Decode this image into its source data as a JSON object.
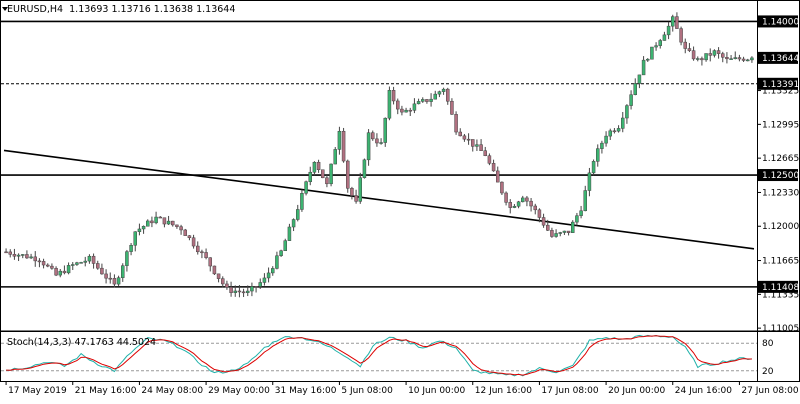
{
  "header": {
    "symbol": "EURUSD,H4",
    "open": "1.13693",
    "high": "1.13716",
    "low": "1.13638",
    "close": "1.13644"
  },
  "indicator": {
    "label": "Stoch(14,3,3)",
    "main_value": "47.1763",
    "signal_value": "44.5024",
    "levels": [
      "80",
      "20"
    ]
  },
  "colors": {
    "background": "#ffffff",
    "bull_candle": "#3cb371",
    "bear_candle": "#b07080",
    "wick": "#444444",
    "level_line": "#000000",
    "stoch_main": "#20b2aa",
    "stoch_signal": "#dd0000",
    "stoch_level": "#999999"
  },
  "chart_data": {
    "type": "candlestick",
    "symbol": "EURUSD",
    "timeframe": "H4",
    "ylim": [
      1.10977,
      1.1418
    ],
    "y_ticks": [
      "1.14000",
      "1.13644",
      "1.13391",
      "1.13325",
      "1.12995",
      "1.12665",
      "1.12500",
      "1.12330",
      "1.12000",
      "1.11665",
      "1.11408",
      "1.11335",
      "1.11005"
    ],
    "highlighted_ticks": [
      "1.14000",
      "1.13644",
      "1.13391",
      "1.12500",
      "1.11408"
    ],
    "x_ticks": [
      "17 May 2019",
      "21 May 16:00",
      "24 May 08:00",
      "29 May 00:00",
      "31 May 16:00",
      "5 Jun 08:00",
      "10 Jun 00:00",
      "12 Jun 16:00",
      "17 Jun 08:00",
      "20 Jun 00:00",
      "24 Jun 16:00",
      "27 Jun 08:00"
    ],
    "x_tick_indices": [
      0,
      16,
      32,
      48,
      64,
      80,
      96,
      112,
      128,
      144,
      160,
      176
    ],
    "num_bars": 180,
    "anchors": [
      [
        0,
        1.1175
      ],
      [
        8,
        1.1168
      ],
      [
        12,
        1.1152
      ],
      [
        16,
        1.1162
      ],
      [
        20,
        1.1168
      ],
      [
        26,
        1.1142
      ],
      [
        31,
        1.1195
      ],
      [
        36,
        1.1208
      ],
      [
        42,
        1.1198
      ],
      [
        48,
        1.1168
      ],
      [
        53,
        1.1138
      ],
      [
        58,
        1.1135
      ],
      [
        62,
        1.1148
      ],
      [
        66,
        1.1175
      ],
      [
        70,
        1.1218
      ],
      [
        74,
        1.1265
      ],
      [
        77,
        1.124
      ],
      [
        80,
        1.1295
      ],
      [
        82,
        1.1238
      ],
      [
        84,
        1.1222
      ],
      [
        87,
        1.129
      ],
      [
        90,
        1.128
      ],
      [
        92,
        1.133
      ],
      [
        95,
        1.131
      ],
      [
        98,
        1.1318
      ],
      [
        102,
        1.1325
      ],
      [
        105,
        1.1335
      ],
      [
        108,
        1.1295
      ],
      [
        112,
        1.128
      ],
      [
        115,
        1.127
      ],
      [
        118,
        1.1242
      ],
      [
        121,
        1.1218
      ],
      [
        124,
        1.123
      ],
      [
        127,
        1.1215
      ],
      [
        131,
        1.119
      ],
      [
        135,
        1.1195
      ],
      [
        138,
        1.1218
      ],
      [
        141,
        1.1265
      ],
      [
        144,
        1.129
      ],
      [
        147,
        1.1298
      ],
      [
        150,
        1.133
      ],
      [
        153,
        1.136
      ],
      [
        156,
        1.1378
      ],
      [
        159,
        1.1395
      ],
      [
        160,
        1.1402
      ],
      [
        163,
        1.1372
      ],
      [
        166,
        1.1362
      ],
      [
        170,
        1.137
      ],
      [
        173,
        1.1362
      ],
      [
        177,
        1.1364
      ]
    ],
    "horizontal_levels": [
      {
        "price": 1.14,
        "style": "solid"
      },
      {
        "price": 1.13391,
        "style": "dashed"
      },
      {
        "price": 1.125,
        "style": "solid"
      },
      {
        "price": 1.11408,
        "style": "solid"
      }
    ],
    "trendline": {
      "start": [
        0,
        1.1274
      ],
      "end": [
        180,
        1.1178
      ]
    },
    "stoch_anchors": [
      [
        0,
        22
      ],
      [
        5,
        28
      ],
      [
        10,
        40
      ],
      [
        14,
        30
      ],
      [
        18,
        55
      ],
      [
        22,
        35
      ],
      [
        26,
        20
      ],
      [
        30,
        60
      ],
      [
        34,
        90
      ],
      [
        38,
        85
      ],
      [
        42,
        70
      ],
      [
        46,
        40
      ],
      [
        50,
        15
      ],
      [
        54,
        20
      ],
      [
        58,
        35
      ],
      [
        62,
        70
      ],
      [
        66,
        92
      ],
      [
        70,
        94
      ],
      [
        74,
        85
      ],
      [
        78,
        70
      ],
      [
        82,
        50
      ],
      [
        85,
        30
      ],
      [
        88,
        75
      ],
      [
        92,
        92
      ],
      [
        96,
        85
      ],
      [
        100,
        70
      ],
      [
        104,
        85
      ],
      [
        108,
        70
      ],
      [
        112,
        20
      ],
      [
        116,
        15
      ],
      [
        120,
        10
      ],
      [
        124,
        12
      ],
      [
        128,
        25
      ],
      [
        132,
        18
      ],
      [
        136,
        30
      ],
      [
        140,
        85
      ],
      [
        144,
        92
      ],
      [
        148,
        88
      ],
      [
        152,
        95
      ],
      [
        156,
        96
      ],
      [
        160,
        94
      ],
      [
        163,
        70
      ],
      [
        166,
        30
      ],
      [
        170,
        35
      ],
      [
        173,
        42
      ],
      [
        177,
        47
      ]
    ]
  }
}
